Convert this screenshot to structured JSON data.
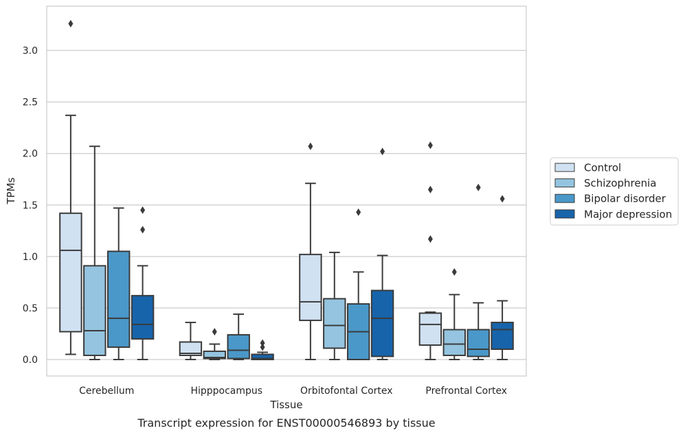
{
  "colors": {
    "Control": "#d0e1f2",
    "Schizophrenia": "#94c4df",
    "Bipolar disorder": "#4a98c9",
    "Major depression": "#1764ab",
    "grid": "#cccccc",
    "axes_edge": "#cccccc",
    "box_edge": "#3b3b3b"
  },
  "chart_data": {
    "type": "boxplot",
    "title": "",
    "caption": "Transcript expression for ENST00000546893 by tissue",
    "xlabel": "Tissue",
    "ylabel": "TPMs",
    "ylim": [
      -0.16,
      3.43
    ],
    "yticks": [
      0.0,
      0.5,
      1.0,
      1.5,
      2.0,
      2.5,
      3.0
    ],
    "ytick_labels": [
      "0.0",
      "0.5",
      "1.0",
      "1.5",
      "2.0",
      "2.5",
      "3.0"
    ],
    "grid": true,
    "legend_position": "right",
    "categories": [
      "Cerebellum",
      "Hipppocampus",
      "Orbitofontal Cortex",
      "Prefrontal Cortex"
    ],
    "series": [
      {
        "name": "Control",
        "boxes": [
          {
            "whislo": 0.05,
            "q1": 0.27,
            "med": 1.06,
            "q3": 1.42,
            "whishi": 2.37,
            "fliers": [
              3.26
            ]
          },
          {
            "whislo": 0.0,
            "q1": 0.04,
            "med": 0.06,
            "q3": 0.17,
            "whishi": 0.36,
            "fliers": []
          },
          {
            "whislo": 0.0,
            "q1": 0.38,
            "med": 0.56,
            "q3": 1.02,
            "whishi": 1.71,
            "fliers": [
              2.07
            ]
          },
          {
            "whislo": 0.0,
            "q1": 0.14,
            "med": 0.34,
            "q3": 0.45,
            "whishi": 0.46,
            "fliers": [
              1.17,
              1.65,
              2.08
            ]
          }
        ]
      },
      {
        "name": "Schizophrenia",
        "boxes": [
          {
            "whislo": 0.0,
            "q1": 0.04,
            "med": 0.28,
            "q3": 0.91,
            "whishi": 2.07,
            "fliers": []
          },
          {
            "whislo": 0.0,
            "q1": 0.01,
            "med": 0.02,
            "q3": 0.08,
            "whishi": 0.15,
            "fliers": [
              0.27
            ]
          },
          {
            "whislo": 0.0,
            "q1": 0.11,
            "med": 0.33,
            "q3": 0.59,
            "whishi": 1.04,
            "fliers": []
          },
          {
            "whislo": 0.0,
            "q1": 0.04,
            "med": 0.15,
            "q3": 0.29,
            "whishi": 0.63,
            "fliers": [
              0.85
            ]
          }
        ]
      },
      {
        "name": "Bipolar disorder",
        "boxes": [
          {
            "whislo": 0.0,
            "q1": 0.12,
            "med": 0.4,
            "q3": 1.05,
            "whishi": 1.47,
            "fliers": []
          },
          {
            "whislo": 0.0,
            "q1": 0.01,
            "med": 0.09,
            "q3": 0.24,
            "whishi": 0.44,
            "fliers": []
          },
          {
            "whislo": 0.0,
            "q1": 0.0,
            "med": 0.27,
            "q3": 0.54,
            "whishi": 0.85,
            "fliers": [
              1.43
            ]
          },
          {
            "whislo": 0.0,
            "q1": 0.03,
            "med": 0.1,
            "q3": 0.29,
            "whishi": 0.55,
            "fliers": [
              1.67
            ]
          }
        ]
      },
      {
        "name": "Major depression",
        "boxes": [
          {
            "whislo": 0.0,
            "q1": 0.2,
            "med": 0.34,
            "q3": 0.62,
            "whishi": 0.91,
            "fliers": [
              1.26,
              1.45
            ]
          },
          {
            "whislo": 0.0,
            "q1": 0.0,
            "med": 0.01,
            "q3": 0.05,
            "whishi": 0.07,
            "fliers": [
              0.12,
              0.16
            ]
          },
          {
            "whislo": 0.0,
            "q1": 0.03,
            "med": 0.4,
            "q3": 0.67,
            "whishi": 1.01,
            "fliers": [
              2.02
            ]
          },
          {
            "whislo": 0.0,
            "q1": 0.1,
            "med": 0.29,
            "q3": 0.36,
            "whishi": 0.57,
            "fliers": [
              1.56
            ]
          }
        ]
      }
    ]
  }
}
